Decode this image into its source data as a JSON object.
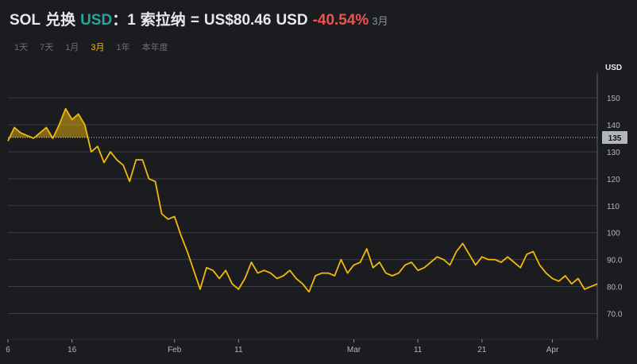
{
  "header": {
    "base": "SOL",
    "exchange_word": "兑换",
    "quote": "USD",
    "colon": "：",
    "one": "1",
    "name": "索拉纳",
    "equals": "=",
    "price": "US$80.46",
    "price_unit": "USD",
    "change": "-40.54%",
    "period": "3月"
  },
  "range_tabs": [
    {
      "label": "1天",
      "active": false
    },
    {
      "label": "7天",
      "active": false
    },
    {
      "label": "1月",
      "active": false
    },
    {
      "label": "3月",
      "active": true
    },
    {
      "label": "1年",
      "active": false
    },
    {
      "label": "本年度",
      "active": false
    }
  ],
  "colors": {
    "background": "#1b1c20",
    "line": "#f0b90b",
    "grid": "#3a3d45",
    "positive": "#26a69a",
    "negative": "#ef5350",
    "baseline_tag": "#b2b5be"
  },
  "chart_data": {
    "type": "line",
    "title": "",
    "xlabel": "",
    "ylabel": "USD",
    "ylim": [
      61,
      158
    ],
    "yticks": [
      70.0,
      80.0,
      90.0,
      100,
      110,
      120,
      130,
      140,
      150
    ],
    "ytick_labels": [
      "70.0",
      "80.0",
      "90.0",
      "100",
      "110",
      "120",
      "130",
      "140",
      "150"
    ],
    "xlim": [
      "2026-01-06",
      "2026-04-08"
    ],
    "xticks": [
      {
        "date": "2026-01-06",
        "label": "6"
      },
      {
        "date": "2026-01-16",
        "label": "16"
      },
      {
        "date": "2026-02-01",
        "label": "Feb"
      },
      {
        "date": "2026-02-11",
        "label": "11"
      },
      {
        "date": "2026-03-01",
        "label": "Mar"
      },
      {
        "date": "2026-03-11",
        "label": "11"
      },
      {
        "date": "2026-03-21",
        "label": "21"
      },
      {
        "date": "2026-04-01",
        "label": "Apr"
      }
    ],
    "baseline": {
      "value": 135.3,
      "label": "135"
    },
    "grid": true,
    "series": [
      {
        "x": [
          "2026-01-06",
          "2026-01-07",
          "2026-01-08",
          "2026-01-09",
          "2026-01-10",
          "2026-01-11",
          "2026-01-12",
          "2026-01-13",
          "2026-01-14",
          "2026-01-15",
          "2026-01-16",
          "2026-01-17",
          "2026-01-18",
          "2026-01-19",
          "2026-01-20",
          "2026-01-21",
          "2026-01-22",
          "2026-01-23",
          "2026-01-24",
          "2026-01-25",
          "2026-01-26",
          "2026-01-27",
          "2026-01-28",
          "2026-01-29",
          "2026-01-30",
          "2026-01-31",
          "2026-02-01",
          "2026-02-02",
          "2026-02-03",
          "2026-02-04",
          "2026-02-05",
          "2026-02-06",
          "2026-02-07",
          "2026-02-08",
          "2026-02-09",
          "2026-02-10",
          "2026-02-11",
          "2026-02-12",
          "2026-02-13",
          "2026-02-14",
          "2026-02-15",
          "2026-02-16",
          "2026-02-17",
          "2026-02-18",
          "2026-02-19",
          "2026-02-20",
          "2026-02-21",
          "2026-02-22",
          "2026-02-23",
          "2026-02-24",
          "2026-02-25",
          "2026-02-26",
          "2026-02-27",
          "2026-02-28",
          "2026-03-01",
          "2026-03-02",
          "2026-03-03",
          "2026-03-04",
          "2026-03-05",
          "2026-03-06",
          "2026-03-07",
          "2026-03-08",
          "2026-03-09",
          "2026-03-10",
          "2026-03-11",
          "2026-03-12",
          "2026-03-13",
          "2026-03-14",
          "2026-03-15",
          "2026-03-16",
          "2026-03-17",
          "2026-03-18",
          "2026-03-19",
          "2026-03-20",
          "2026-03-21",
          "2026-03-22",
          "2026-03-23",
          "2026-03-24",
          "2026-03-25",
          "2026-03-26",
          "2026-03-27",
          "2026-03-28",
          "2026-03-29",
          "2026-03-30",
          "2026-03-31",
          "2026-04-01",
          "2026-04-02",
          "2026-04-03",
          "2026-04-04",
          "2026-04-05",
          "2026-04-06",
          "2026-04-07",
          "2026-04-08"
        ],
        "values": [
          134,
          139,
          137,
          136,
          135,
          137,
          139,
          135,
          140,
          146,
          142,
          144,
          140,
          130,
          132,
          126,
          130,
          127,
          125,
          119,
          127,
          127,
          120,
          119,
          107,
          105,
          106,
          99,
          93,
          86,
          79,
          87,
          86,
          83,
          86,
          81,
          79,
          83,
          89,
          85,
          86,
          85,
          83,
          84,
          86,
          83,
          81,
          78,
          84,
          85,
          85,
          84,
          90,
          85,
          88,
          89,
          94,
          87,
          89,
          85,
          84,
          85,
          88,
          89,
          86,
          87,
          89,
          91,
          90,
          88,
          93,
          96,
          92,
          88,
          91,
          90,
          90,
          89,
          91,
          89,
          87,
          92,
          93,
          88,
          85,
          83,
          82,
          84,
          81,
          83,
          79,
          80,
          81
        ]
      }
    ]
  }
}
